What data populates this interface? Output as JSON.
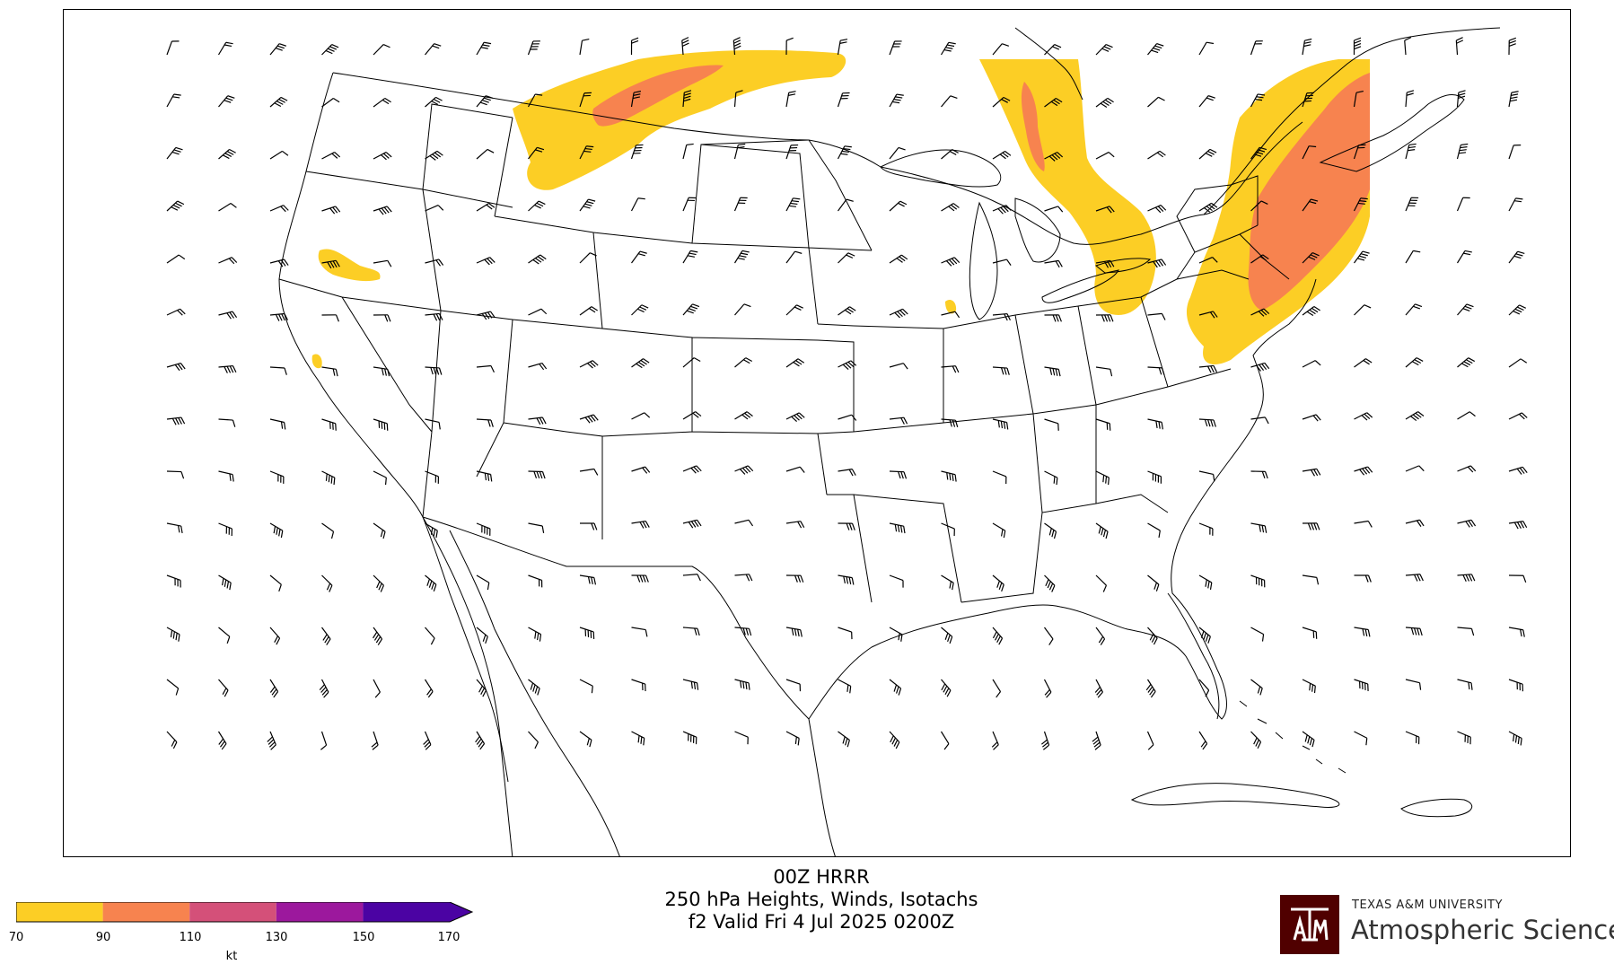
{
  "title": {
    "line1": "00Z HRRR",
    "line2": "250 hPa Heights, Winds, Isotachs",
    "line3": "f2 Valid Fri 4 Jul 2025 0200Z"
  },
  "colorbar": {
    "ticks": [
      "70",
      "90",
      "110",
      "130",
      "150",
      "170"
    ],
    "unit": "kt",
    "colors": [
      "#fcce25",
      "#f7834f",
      "#d45079",
      "#9c189d",
      "#4b03a3"
    ],
    "extend": "max"
  },
  "logo": {
    "university": "TEXAS A&M UNIVERSITY",
    "department": "Atmospheric Sciences",
    "mark": "ATM",
    "mark_color": "#500000"
  },
  "map": {
    "isotach_colors": {
      "70-90": "#fcce25",
      "90-110": "#f7834f"
    },
    "jet_streaks": [
      "Northern Plains / Saskatchewan",
      "Ontario / Great Lakes",
      "New England / Northeast",
      "Northern California / Nevada"
    ],
    "wind_barbs": "on",
    "boundaries": "states and countries"
  }
}
